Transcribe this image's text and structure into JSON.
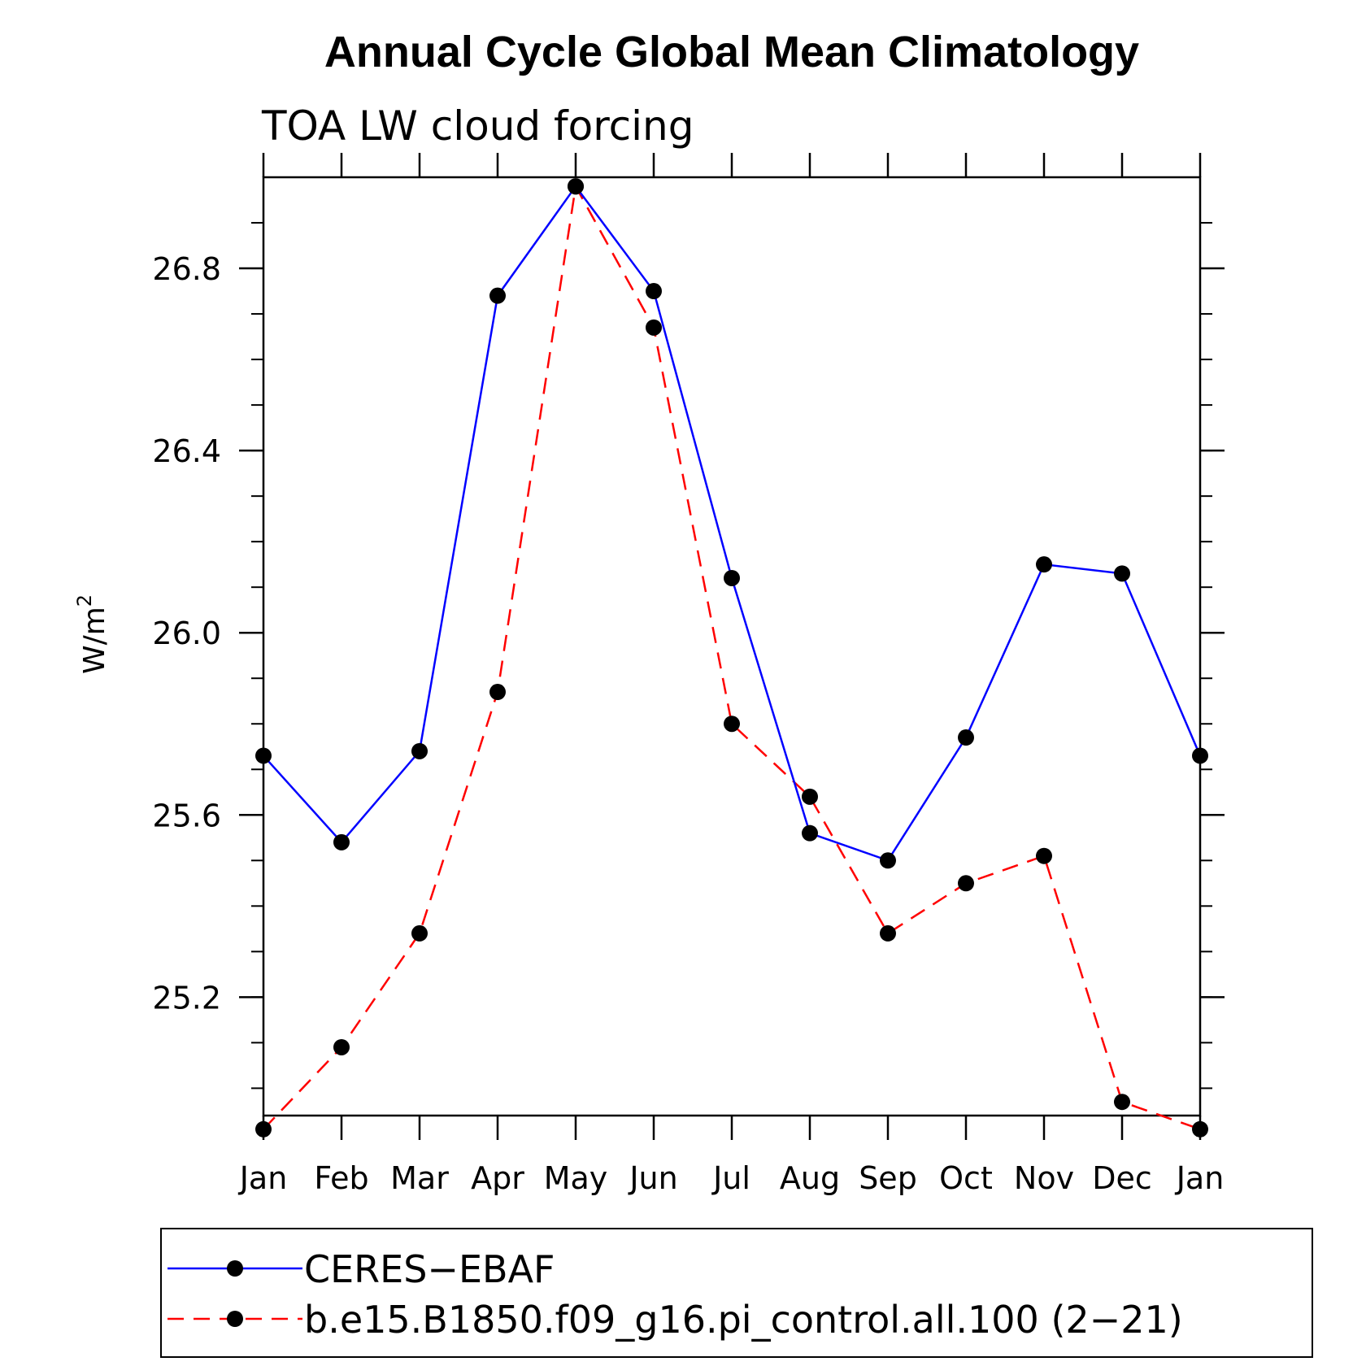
{
  "chart_data": {
    "type": "line",
    "title": "Annual Cycle Global Mean Climatology",
    "subtitle": "TOA LW cloud forcing",
    "ylabel": "W/m",
    "ylabel_sup": "2",
    "categories": [
      "Jan",
      "Feb",
      "Mar",
      "Apr",
      "May",
      "Jun",
      "Jul",
      "Aug",
      "Sep",
      "Oct",
      "Nov",
      "Dec",
      "Jan"
    ],
    "ylim": [
      24.94,
      27.0
    ],
    "yticks": [
      25.2,
      25.6,
      26.0,
      26.4,
      26.8
    ],
    "ytick_labels": [
      "25.2",
      "25.6",
      "26.0",
      "26.4",
      "26.8"
    ],
    "series": [
      {
        "name": "CERES−EBAF",
        "color": "#0000ff",
        "dash": "solid",
        "values": [
          25.73,
          25.54,
          25.74,
          26.74,
          26.98,
          26.75,
          26.12,
          25.56,
          25.5,
          25.77,
          26.15,
          26.13,
          25.73
        ]
      },
      {
        "name": "b.e15.B1850.f09_g16.pi_control.all.100 (2−21)",
        "color": "#ff0000",
        "dash": "dashed",
        "values": [
          24.91,
          25.09,
          25.34,
          25.87,
          26.98,
          26.67,
          25.8,
          25.64,
          25.34,
          25.45,
          25.51,
          24.97,
          24.91
        ]
      }
    ],
    "marker": "filled-circle",
    "grid": false,
    "legend_position": "bottom"
  }
}
